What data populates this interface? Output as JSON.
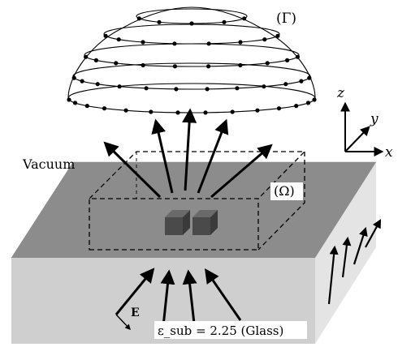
{
  "labels": {
    "gamma": "(Γ)",
    "omega": "(Ω)",
    "vacuum": "Vacuum",
    "axis_z": "z",
    "axis_y": "y",
    "axis_x": "x",
    "efield": "E",
    "substrate": "ε_sub = 2.25 (Glass)"
  },
  "colors": {
    "background": "#ffffff",
    "substrate_top": "#8c8c8c",
    "substrate_front": "#cfcfcf",
    "substrate_side": "#e4e4e4",
    "particles": "#5a5a5a",
    "lines": "#000000"
  },
  "hemisphere": {
    "rings": 5,
    "dots_per_ring": [
      5,
      8,
      10,
      12,
      14
    ]
  }
}
